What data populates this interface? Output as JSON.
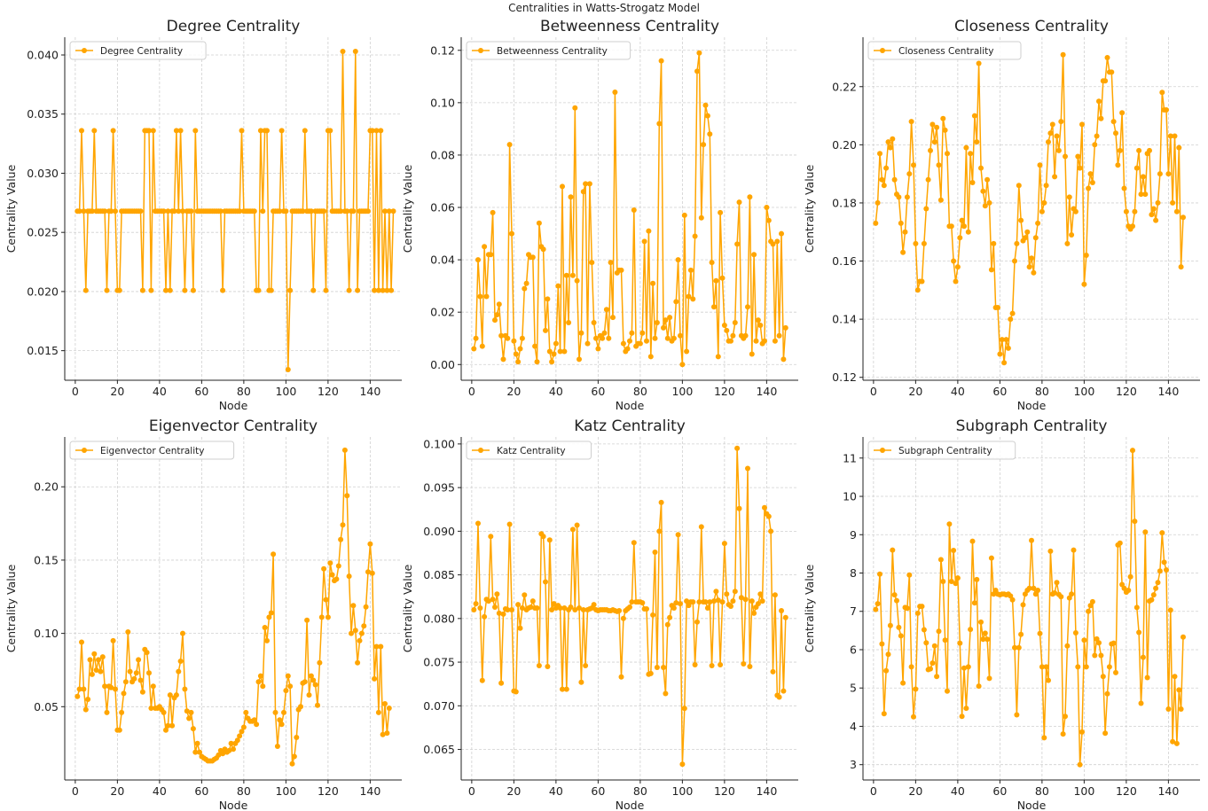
{
  "suptitle": "Centralities in Watts-Strogatz Model",
  "style": {
    "line_color": "#FFA500",
    "grid_color": "#d0d0d0"
  },
  "chart_data": [
    {
      "type": "line",
      "title": "Degree Centrality",
      "xlabel": "Node",
      "ylabel": "Centrality Value",
      "legend": "Degree Centrality",
      "legend_position": "top-left",
      "grid": true,
      "xlim": [
        -5,
        155
      ],
      "ylim": [
        0.0125,
        0.0415
      ],
      "xticks": [
        0,
        20,
        40,
        60,
        80,
        100,
        120,
        140
      ],
      "yticks": [
        0.015,
        0.02,
        0.025,
        0.03,
        0.035,
        0.04
      ],
      "ytick_decimals": 3,
      "x_start": 1,
      "values": [
        0.0268,
        0.0268,
        0.0336,
        0.0268,
        0.0201,
        0.0268,
        0.0268,
        0.0268,
        0.0336,
        0.0268,
        0.0268,
        0.0268,
        0.0268,
        0.0268,
        0.0201,
        0.0268,
        0.0268,
        0.0336,
        0.0268,
        0.0201,
        0.0201,
        0.0268,
        0.0268,
        0.0268,
        0.0268,
        0.0268,
        0.0268,
        0.0268,
        0.0268,
        0.0268,
        0.0268,
        0.0201,
        0.0336,
        0.0336,
        0.0336,
        0.0201,
        0.0336,
        0.0268,
        0.0268,
        0.0268,
        0.0268,
        0.0268,
        0.0201,
        0.0268,
        0.0201,
        0.0268,
        0.0268,
        0.0336,
        0.0268,
        0.0336,
        0.0268,
        0.0201,
        0.0268,
        0.0268,
        0.0268,
        0.0201,
        0.0336,
        0.0268,
        0.0268,
        0.0268,
        0.0268,
        0.0268,
        0.0268,
        0.0268,
        0.0268,
        0.0268,
        0.0268,
        0.0268,
        0.0268,
        0.0201,
        0.0268,
        0.0268,
        0.0268,
        0.0268,
        0.0268,
        0.0268,
        0.0268,
        0.0268,
        0.0336,
        0.0268,
        0.0268,
        0.0268,
        0.0268,
        0.0268,
        0.0268,
        0.0201,
        0.0201,
        0.0336,
        0.0268,
        0.0336,
        0.0336,
        0.0201,
        0.0201,
        0.0268,
        0.0268,
        0.0268,
        0.0268,
        0.0336,
        0.0268,
        0.0268,
        0.0134,
        0.0201,
        0.0268,
        0.0268,
        0.0268,
        0.0268,
        0.0268,
        0.0268,
        0.0336,
        0.0268,
        0.0268,
        0.0268,
        0.0201,
        0.0268,
        0.0268,
        0.0268,
        0.0268,
        0.0268,
        0.0201,
        0.0336,
        0.0336,
        0.0268,
        0.0268,
        0.0268,
        0.0268,
        0.0268,
        0.0403,
        0.0268,
        0.0268,
        0.0201,
        0.0268,
        0.0268,
        0.0403,
        0.0201,
        0.0268,
        0.0268,
        0.0268,
        0.0268,
        0.0268,
        0.0336,
        0.0336,
        0.0201,
        0.0336,
        0.0201,
        0.0336,
        0.0201,
        0.0268,
        0.0201,
        0.0268,
        0.0201,
        0.0268
      ]
    },
    {
      "type": "line",
      "title": "Betweenness Centrality",
      "xlabel": "Node",
      "ylabel": "Centrality Value",
      "legend": "Betweenness Centrality",
      "legend_position": "top-left",
      "grid": true,
      "xlim": [
        -5,
        155
      ],
      "ylim": [
        -0.006,
        0.125
      ],
      "xticks": [
        0,
        20,
        40,
        60,
        80,
        100,
        120,
        140
      ],
      "yticks": [
        0.0,
        0.02,
        0.04,
        0.06,
        0.08,
        0.1,
        0.12
      ],
      "ytick_decimals": 2,
      "x_start": 1,
      "values": [
        0.006,
        0.01,
        0.04,
        0.026,
        0.007,
        0.045,
        0.026,
        0.042,
        0.042,
        0.058,
        0.017,
        0.019,
        0.023,
        0.011,
        0.002,
        0.011,
        0.01,
        0.084,
        0.05,
        0.009,
        0.004,
        0.001,
        0.006,
        0.01,
        0.029,
        0.031,
        0.042,
        0.041,
        0.041,
        0.007,
        0.001,
        0.054,
        0.045,
        0.044,
        0.013,
        0.025,
        0.005,
        0.001,
        0.004,
        0.008,
        0.03,
        0.005,
        0.068,
        0.005,
        0.034,
        0.016,
        0.064,
        0.034,
        0.098,
        0.032,
        0.002,
        0.012,
        0.066,
        0.069,
        0.008,
        0.069,
        0.039,
        0.016,
        0.01,
        0.006,
        0.011,
        0.01,
        0.012,
        0.021,
        0.01,
        0.039,
        0.018,
        0.104,
        0.035,
        0.036,
        0.036,
        0.008,
        0.005,
        0.006,
        0.009,
        0.012,
        0.059,
        0.007,
        0.008,
        0.008,
        0.012,
        0.047,
        0.009,
        0.051,
        0.003,
        0.031,
        0.01,
        0.016,
        0.092,
        0.116,
        0.014,
        0.017,
        0.01,
        0.018,
        0.009,
        0.01,
        0.024,
        0.04,
        0.011,
        0.0,
        0.057,
        0.005,
        0.026,
        0.036,
        0.025,
        0.049,
        0.112,
        0.119,
        0.056,
        0.084,
        0.099,
        0.095,
        0.088,
        0.039,
        0.022,
        0.032,
        0.003,
        0.058,
        0.033,
        0.015,
        0.013,
        0.009,
        0.009,
        0.011,
        0.016,
        0.046,
        0.062,
        0.011,
        0.01,
        0.011,
        0.022,
        0.064,
        0.004,
        0.042,
        0.009,
        0.017,
        0.015,
        0.008,
        0.009,
        0.06,
        0.055,
        0.047,
        0.046,
        0.009,
        0.047,
        0.011,
        0.05,
        0.002,
        0.014
      ]
    },
    {
      "type": "line",
      "title": "Closeness Centrality",
      "xlabel": "Node",
      "ylabel": "Centrality Value",
      "legend": "Closeness Centrality",
      "legend_position": "top-left",
      "grid": true,
      "xlim": [
        -5,
        155
      ],
      "ylim": [
        0.119,
        0.237
      ],
      "xticks": [
        0,
        20,
        40,
        60,
        80,
        100,
        120,
        140
      ],
      "yticks": [
        0.12,
        0.14,
        0.16,
        0.18,
        0.2,
        0.22
      ],
      "ytick_decimals": 2,
      "x_start": 1,
      "values": [
        0.173,
        0.18,
        0.197,
        0.188,
        0.186,
        0.192,
        0.201,
        0.199,
        0.202,
        0.188,
        0.183,
        0.182,
        0.173,
        0.163,
        0.17,
        0.182,
        0.19,
        0.208,
        0.193,
        0.166,
        0.15,
        0.153,
        0.153,
        0.166,
        0.178,
        0.188,
        0.198,
        0.207,
        0.201,
        0.206,
        0.193,
        0.181,
        0.209,
        0.205,
        0.197,
        0.172,
        0.172,
        0.16,
        0.153,
        0.158,
        0.168,
        0.174,
        0.172,
        0.199,
        0.17,
        0.197,
        0.187,
        0.21,
        0.201,
        0.228,
        0.192,
        0.184,
        0.179,
        0.188,
        0.18,
        0.157,
        0.166,
        0.144,
        0.144,
        0.128,
        0.133,
        0.125,
        0.133,
        0.13,
        0.14,
        0.142,
        0.16,
        0.166,
        0.186,
        0.174,
        0.167,
        0.168,
        0.17,
        0.158,
        0.161,
        0.156,
        0.168,
        0.173,
        0.193,
        0.177,
        0.18,
        0.186,
        0.201,
        0.204,
        0.207,
        0.189,
        0.203,
        0.198,
        0.208,
        0.231,
        0.196,
        0.166,
        0.182,
        0.169,
        0.178,
        0.177,
        0.196,
        0.192,
        0.207,
        0.152,
        0.162,
        0.185,
        0.19,
        0.187,
        0.2,
        0.203,
        0.215,
        0.209,
        0.222,
        0.222,
        0.23,
        0.225,
        0.225,
        0.208,
        0.204,
        0.193,
        0.198,
        0.211,
        0.185,
        0.177,
        0.172,
        0.171,
        0.172,
        0.177,
        0.192,
        0.198,
        0.183,
        0.189,
        0.183,
        0.197,
        0.198,
        0.176,
        0.178,
        0.174,
        0.18,
        0.19,
        0.218,
        0.212,
        0.212,
        0.19,
        0.203,
        0.18,
        0.203,
        0.177,
        0.199,
        0.158,
        0.175
      ]
    },
    {
      "type": "line",
      "title": "Eigenvector Centrality",
      "xlabel": "Node",
      "ylabel": "Centrality Value",
      "legend": "Eigenvector Centrality",
      "legend_position": "top-left",
      "grid": true,
      "xlim": [
        -5,
        155
      ],
      "ylim": [
        0.0,
        0.234
      ],
      "xticks": [
        0,
        20,
        40,
        60,
        80,
        100,
        120,
        140
      ],
      "yticks": [
        0.05,
        0.1,
        0.15,
        0.2
      ],
      "ytick_decimals": 2,
      "x_start": 1,
      "values": [
        0.057,
        0.062,
        0.094,
        0.062,
        0.048,
        0.055,
        0.082,
        0.072,
        0.086,
        0.075,
        0.082,
        0.074,
        0.084,
        0.064,
        0.046,
        0.064,
        0.063,
        0.095,
        0.062,
        0.034,
        0.034,
        0.046,
        0.059,
        0.067,
        0.101,
        0.074,
        0.067,
        0.069,
        0.073,
        0.082,
        0.068,
        0.06,
        0.089,
        0.087,
        0.073,
        0.049,
        0.064,
        0.049,
        0.049,
        0.05,
        0.048,
        0.046,
        0.034,
        0.037,
        0.058,
        0.037,
        0.056,
        0.058,
        0.074,
        0.081,
        0.1,
        0.062,
        0.047,
        0.042,
        0.046,
        0.035,
        0.019,
        0.025,
        0.019,
        0.016,
        0.015,
        0.014,
        0.013,
        0.013,
        0.013,
        0.014,
        0.015,
        0.017,
        0.02,
        0.018,
        0.021,
        0.019,
        0.02,
        0.025,
        0.021,
        0.025,
        0.027,
        0.03,
        0.033,
        0.036,
        0.046,
        0.042,
        0.04,
        0.04,
        0.041,
        0.038,
        0.067,
        0.071,
        0.064,
        0.104,
        0.095,
        0.111,
        0.114,
        0.154,
        0.046,
        0.023,
        0.041,
        0.038,
        0.046,
        0.061,
        0.071,
        0.064,
        0.011,
        0.016,
        0.029,
        0.048,
        0.05,
        0.066,
        0.067,
        0.109,
        0.058,
        0.071,
        0.068,
        0.065,
        0.051,
        0.08,
        0.111,
        0.144,
        0.123,
        0.111,
        0.148,
        0.14,
        0.136,
        0.137,
        0.146,
        0.164,
        0.174,
        0.225,
        0.194,
        0.139,
        0.1,
        0.119,
        0.102,
        0.08,
        0.095,
        0.1,
        0.105,
        0.118,
        0.142,
        0.161,
        0.141,
        0.069,
        0.091,
        0.046,
        0.091,
        0.031,
        0.052,
        0.032,
        0.049
      ]
    },
    {
      "type": "line",
      "title": "Katz Centrality",
      "xlabel": "Node",
      "ylabel": "Centrality Value",
      "legend": "Katz Centrality",
      "legend_position": "top-left",
      "grid": true,
      "xlim": [
        -5,
        155
      ],
      "ylim": [
        0.0615,
        0.1008
      ],
      "xticks": [
        0,
        20,
        40,
        60,
        80,
        100,
        120,
        140
      ],
      "yticks": [
        0.065,
        0.07,
        0.075,
        0.08,
        0.085,
        0.09,
        0.095,
        0.1
      ],
      "ytick_decimals": 3,
      "x_start": 1,
      "values": [
        0.081,
        0.0817,
        0.0909,
        0.0812,
        0.0729,
        0.0802,
        0.0822,
        0.082,
        0.0894,
        0.0822,
        0.0813,
        0.0828,
        0.0806,
        0.0726,
        0.0805,
        0.0811,
        0.081,
        0.0908,
        0.081,
        0.0717,
        0.0716,
        0.0816,
        0.0789,
        0.0812,
        0.0827,
        0.081,
        0.0812,
        0.0813,
        0.082,
        0.0812,
        0.0812,
        0.0746,
        0.0897,
        0.0894,
        0.0842,
        0.0745,
        0.089,
        0.081,
        0.0817,
        0.0812,
        0.0815,
        0.0812,
        0.0719,
        0.0812,
        0.0719,
        0.081,
        0.0813,
        0.0902,
        0.081,
        0.0907,
        0.0812,
        0.0727,
        0.081,
        0.0746,
        0.081,
        0.0811,
        0.0812,
        0.0816,
        0.081,
        0.0809,
        0.081,
        0.081,
        0.081,
        0.081,
        0.0809,
        0.0809,
        0.081,
        0.0809,
        0.0808,
        0.0809,
        0.0733,
        0.08,
        0.0809,
        0.0811,
        0.0813,
        0.0819,
        0.0887,
        0.0819,
        0.0819,
        0.0819,
        0.0818,
        0.0811,
        0.0811,
        0.0736,
        0.0737,
        0.0804,
        0.0876,
        0.0744,
        0.09,
        0.0933,
        0.0744,
        0.0714,
        0.0793,
        0.0801,
        0.0815,
        0.0812,
        0.0818,
        0.0896,
        0.0817,
        0.0633,
        0.0697,
        0.082,
        0.0815,
        0.0819,
        0.0819,
        0.0747,
        0.0796,
        0.0819,
        0.0905,
        0.0819,
        0.0819,
        0.0812,
        0.0819,
        0.0746,
        0.082,
        0.0831,
        0.0821,
        0.0747,
        0.0819,
        0.0886,
        0.0828,
        0.0816,
        0.0814,
        0.082,
        0.0831,
        0.0995,
        0.0926,
        0.0824,
        0.0748,
        0.0822,
        0.0972,
        0.0745,
        0.082,
        0.0806,
        0.0813,
        0.0817,
        0.0828,
        0.082,
        0.0927,
        0.092,
        0.0917,
        0.09,
        0.0739,
        0.0827,
        0.0712,
        0.071,
        0.0809,
        0.0717,
        0.0801
      ]
    },
    {
      "type": "line",
      "title": "Subgraph Centrality",
      "xlabel": "Node",
      "ylabel": "Centrality Value",
      "legend": "Subgraph Centrality",
      "legend_position": "top-left",
      "grid": true,
      "xlim": [
        -5,
        155
      ],
      "ylim": [
        2.6,
        11.55
      ],
      "xticks": [
        0,
        20,
        40,
        60,
        80,
        100,
        120,
        140
      ],
      "yticks": [
        3,
        4,
        5,
        6,
        7,
        8,
        9,
        10,
        11
      ],
      "ytick_decimals": 0,
      "x_start": 1,
      "values": [
        7.05,
        7.2,
        7.97,
        6.15,
        4.33,
        5.45,
        5.88,
        6.63,
        8.6,
        7.43,
        7.28,
        6.58,
        6.36,
        5.13,
        7.1,
        7.08,
        7.95,
        5.55,
        4.25,
        4.97,
        6.95,
        7.13,
        7.13,
        6.52,
        6.18,
        5.48,
        5.5,
        5.65,
        6.1,
        5.3,
        6.48,
        8.35,
        7.78,
        6.25,
        4.92,
        9.28,
        7.78,
        8.59,
        7.73,
        7.87,
        6.17,
        4.26,
        5.52,
        4.47,
        5.55,
        6.53,
        8.83,
        7.22,
        7.83,
        5.05,
        6.72,
        6.27,
        6.43,
        6.27,
        5.25,
        8.39,
        7.45,
        7.55,
        7.45,
        7.43,
        7.45,
        7.45,
        7.43,
        7.45,
        7.4,
        7.3,
        6.05,
        4.3,
        6.05,
        6.4,
        7.17,
        7.45,
        7.55,
        7.6,
        8.85,
        7.6,
        7.45,
        7.55,
        6.42,
        5.55,
        3.7,
        5.55,
        5.2,
        8.57,
        7.45,
        7.48,
        7.75,
        7.44,
        7.38,
        3.8,
        4.26,
        6.1,
        7.35,
        7.45,
        8.6,
        6.44,
        5.55,
        3.0,
        3.85,
        6.25,
        5.55,
        7.0,
        7.15,
        7.25,
        5.85,
        6.28,
        6.18,
        5.85,
        5.3,
        3.82,
        4.85,
        5.55,
        6.15,
        6.17,
        5.4,
        8.73,
        8.78,
        7.7,
        7.6,
        7.5,
        7.55,
        7.9,
        11.2,
        9.35,
        7.1,
        6.45,
        4.6,
        5.8,
        9.07,
        5.27,
        7.27,
        7.3,
        7.43,
        7.6,
        7.75,
        8.05,
        9.05,
        8.28,
        8.08,
        4.45,
        7.03,
        3.6,
        5.3,
        3.55,
        4.95,
        4.45,
        6.33
      ]
    }
  ]
}
